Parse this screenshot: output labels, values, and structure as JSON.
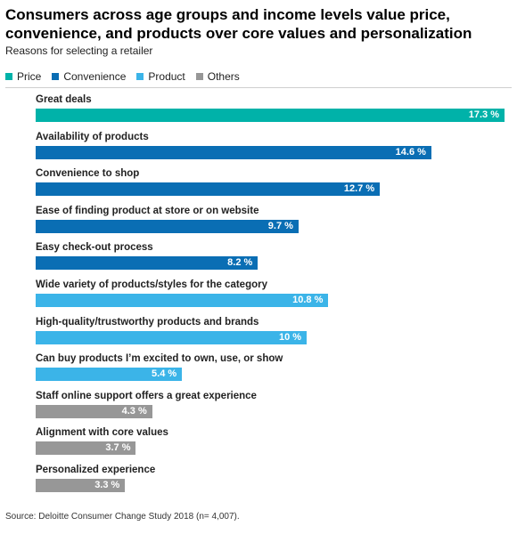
{
  "title": "Consumers across age groups and income levels value price, convenience, and products over core values and personalization",
  "subtitle": "Reasons for selecting a retailer",
  "legend": [
    {
      "name": "Price",
      "color": "#00b2a9"
    },
    {
      "name": "Convenience",
      "color": "#0a6eb4"
    },
    {
      "name": "Product",
      "color": "#3bb4e8"
    },
    {
      "name": "Others",
      "color": "#979797"
    }
  ],
  "chart_data": {
    "type": "bar",
    "orientation": "horizontal",
    "xlim": [
      0,
      17.3
    ],
    "unit": "%",
    "categories": [
      "Great deals",
      "Availability of products",
      "Convenience to shop",
      "Ease of finding product at store or on website",
      "Easy check-out process",
      "Wide variety of products/styles for the category",
      "High-quality/trustworthy products and brands",
      "Can buy products I’m excited to own, use, or show",
      "Staff online support offers a great experience",
      "Alignment with core values",
      "Personalized experience"
    ],
    "values": [
      17.3,
      14.6,
      12.7,
      9.7,
      8.2,
      10.8,
      10,
      5.4,
      4.3,
      3.7,
      3.3
    ],
    "value_labels": [
      "17.3 %",
      "14.6 %",
      "12.7 %",
      "9.7 %",
      "8.2 %",
      "10.8 %",
      "10 %",
      "5.4 %",
      "4.3 %",
      "3.7 %",
      "3.3 %"
    ],
    "groups": [
      "Price",
      "Convenience",
      "Convenience",
      "Convenience",
      "Convenience",
      "Product",
      "Product",
      "Product",
      "Others",
      "Others",
      "Others"
    ]
  },
  "source": "Source: Deloitte Consumer Change Study 2018 (n= 4,007)."
}
